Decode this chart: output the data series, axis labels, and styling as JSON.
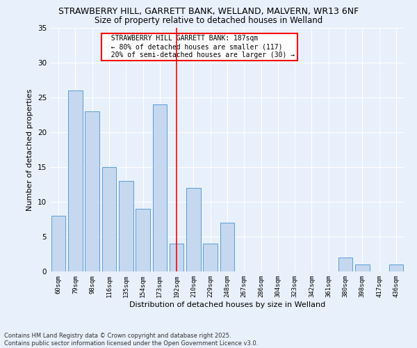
{
  "title1": "STRAWBERRY HILL, GARRETT BANK, WELLAND, MALVERN, WR13 6NF",
  "title2": "Size of property relative to detached houses in Welland",
  "xlabel": "Distribution of detached houses by size in Welland",
  "ylabel": "Number of detached properties",
  "categories": [
    "60sqm",
    "79sqm",
    "98sqm",
    "116sqm",
    "135sqm",
    "154sqm",
    "173sqm",
    "192sqm",
    "210sqm",
    "229sqm",
    "248sqm",
    "267sqm",
    "286sqm",
    "304sqm",
    "323sqm",
    "342sqm",
    "361sqm",
    "380sqm",
    "398sqm",
    "417sqm",
    "436sqm"
  ],
  "values": [
    8,
    26,
    23,
    15,
    13,
    9,
    24,
    4,
    12,
    4,
    7,
    0,
    0,
    0,
    0,
    0,
    0,
    2,
    1,
    0,
    1
  ],
  "bar_color": "#c5d8f0",
  "bar_edge_color": "#5b9bd5",
  "property_line_x": 7,
  "property_line_color": "red",
  "annotation_text": "  STRAWBERRY HILL GARRETT BANK: 187sqm\n  ← 80% of detached houses are smaller (117)\n  20% of semi-detached houses are larger (30) →",
  "annotation_box_color": "white",
  "annotation_box_edge_color": "red",
  "ylim": [
    0,
    35
  ],
  "yticks": [
    0,
    5,
    10,
    15,
    20,
    25,
    30,
    35
  ],
  "footer_text": "Contains HM Land Registry data © Crown copyright and database right 2025.\nContains public sector information licensed under the Open Government Licence v3.0.",
  "background_color": "#e8f0fb",
  "grid_color": "white",
  "title1_fontsize": 9,
  "title2_fontsize": 8.5,
  "xlabel_fontsize": 8,
  "ylabel_fontsize": 8
}
